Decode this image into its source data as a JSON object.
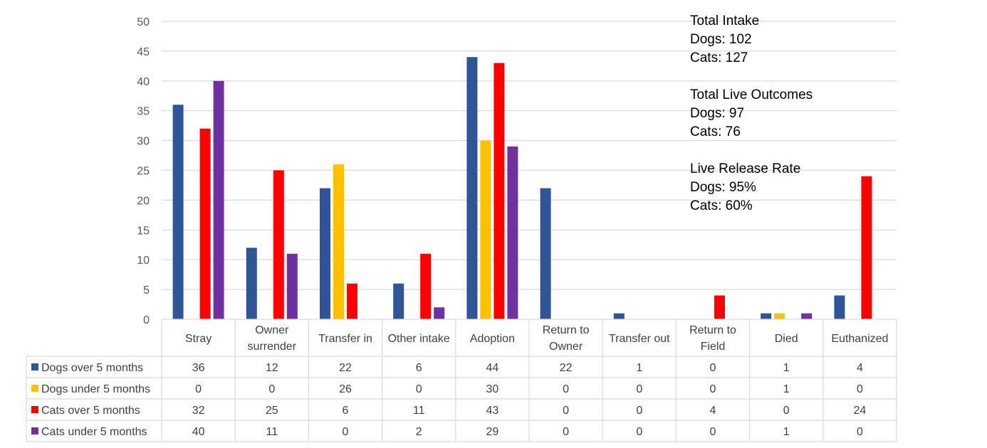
{
  "chart_data": {
    "type": "bar",
    "ylim": [
      0,
      50
    ],
    "yticks": [
      0,
      5,
      10,
      15,
      20,
      25,
      30,
      35,
      40,
      45,
      50
    ],
    "grid": true,
    "legend": "table-left",
    "categories": [
      [
        "Stray"
      ],
      [
        "Owner",
        "surrender"
      ],
      [
        "Transfer in"
      ],
      [
        "Other intake"
      ],
      [
        "Adoption"
      ],
      [
        "Return to",
        "Owner"
      ],
      [
        "Transfer out"
      ],
      [
        "Return to",
        "Field"
      ],
      [
        "Died"
      ],
      [
        "Euthanized"
      ]
    ],
    "series": [
      {
        "name": "Dogs over 5 months",
        "color": "#2F5597",
        "values": [
          36,
          12,
          22,
          6,
          44,
          22,
          1,
          0,
          1,
          4
        ]
      },
      {
        "name": "Dogs under 5 months",
        "color": "#FFC000",
        "values": [
          0,
          0,
          26,
          0,
          30,
          0,
          0,
          0,
          1,
          0
        ]
      },
      {
        "name": "Cats over 5 months",
        "color": "#FF0000",
        "values": [
          32,
          25,
          6,
          11,
          43,
          0,
          0,
          4,
          0,
          24
        ]
      },
      {
        "name": "Cats under 5 months",
        "color": "#7030A0",
        "values": [
          40,
          11,
          0,
          2,
          29,
          0,
          0,
          0,
          1,
          0
        ]
      }
    ]
  },
  "summary": {
    "intake": {
      "title": "Total Intake",
      "dogs": "Dogs: 102",
      "cats": "Cats: 127"
    },
    "live_outcomes": {
      "title": "Total Live Outcomes",
      "dogs": "Dogs: 97",
      "cats": "Cats: 76"
    },
    "release_rate": {
      "title": "Live Release Rate",
      "dogs": "Dogs: 95%",
      "cats": "Cats: 60%"
    }
  }
}
